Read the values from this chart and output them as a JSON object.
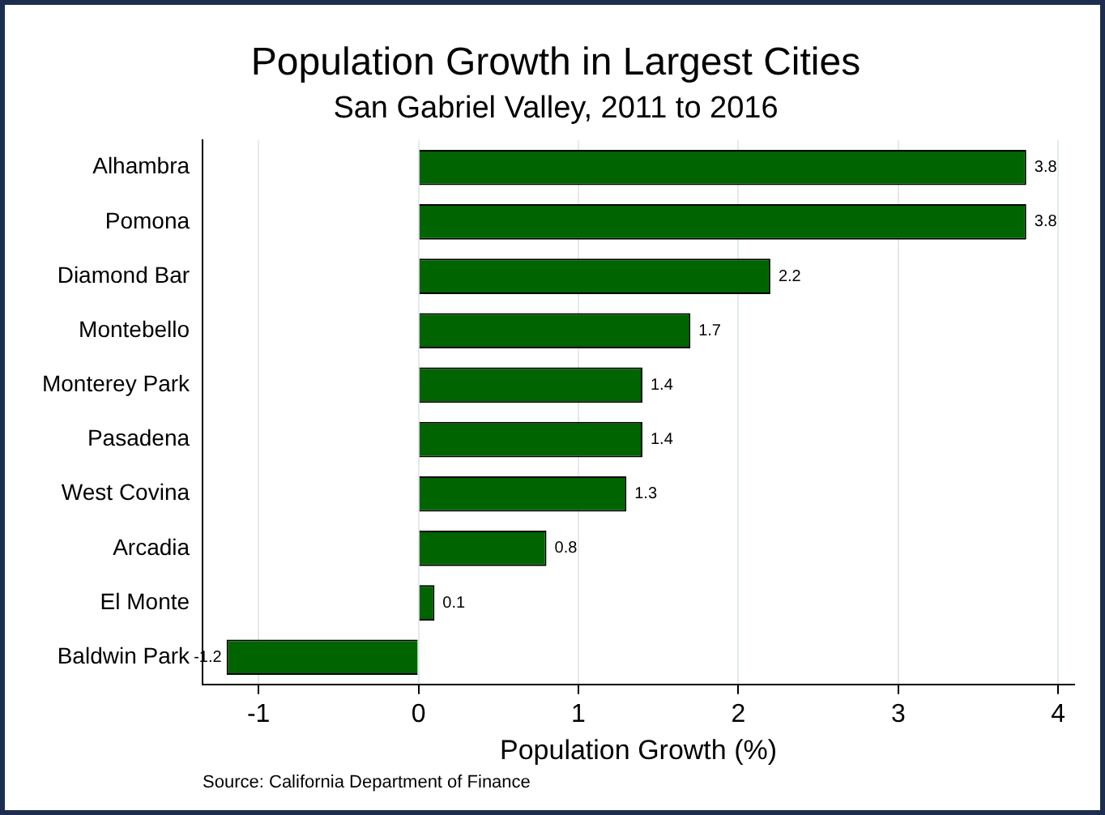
{
  "chart_data": {
    "type": "bar",
    "orientation": "horizontal",
    "title": "Population Growth in Largest Cities",
    "subtitle": "San Gabriel Valley, 2011 to 2016",
    "xlabel": "Population Growth (%)",
    "categories": [
      "Alhambra",
      "Pomona",
      "Diamond Bar",
      "Montebello",
      "Monterey Park",
      "Pasadena",
      "West Covina",
      "Arcadia",
      "El Monte",
      "Baldwin Park"
    ],
    "values": [
      3.8,
      3.8,
      2.2,
      1.7,
      1.4,
      1.4,
      1.3,
      0.8,
      0.1,
      -1.2
    ],
    "color": "#006400",
    "xlim": [
      -1.35,
      4.1
    ],
    "xticks": [
      -1,
      0,
      1,
      2,
      3,
      4
    ],
    "grid": "x",
    "data_labels": true,
    "legend": false,
    "annotations": [
      "Source: California Department of Finance"
    ]
  }
}
